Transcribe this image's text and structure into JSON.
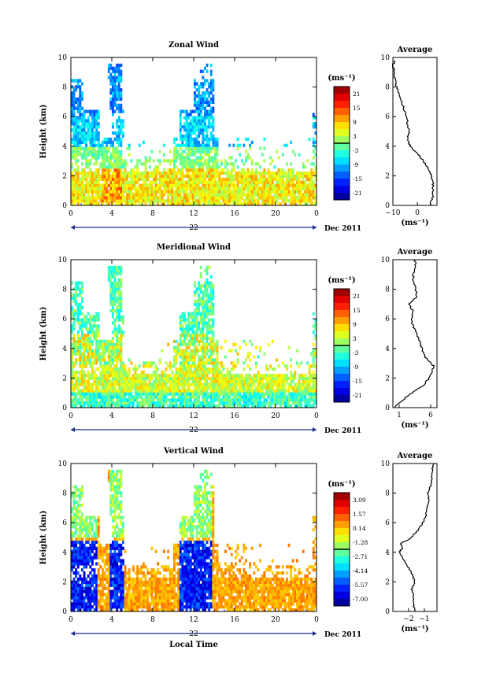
{
  "figure": {
    "date_label": "Dec 2011",
    "day_label": "22",
    "xlabel_bottom": "Local Time",
    "x_ticks": [
      "0",
      "4",
      "8",
      "12",
      "16",
      "20",
      "0"
    ]
  },
  "chart_data": [
    {
      "type": "heatmap",
      "title": "Zonal Wind",
      "ylabel": "Height (km)",
      "xlabel": "",
      "xlim": [
        0,
        24
      ],
      "ylim": [
        0,
        10
      ],
      "y_ticks": [
        "0",
        "2",
        "4",
        "6",
        "8",
        "10"
      ],
      "colorbar": {
        "unit": "(ms⁻¹)",
        "tick_labels": [
          "21",
          "15",
          "9",
          "3",
          "-3",
          "-9",
          "-15",
          "-21"
        ],
        "range": [
          -24,
          24
        ]
      },
      "profile": {
        "title": "Average",
        "xlabel": "(ms⁻¹)",
        "xlim": [
          -10,
          8
        ],
        "x_ticks": [
          "−10",
          "0"
        ],
        "x_tick_values": [
          -10,
          0
        ],
        "y_ticks": [
          "0",
          "2",
          "4",
          "6",
          "8",
          "10"
        ],
        "height_km": [
          0,
          0.5,
          1,
          1.5,
          2,
          2.5,
          3,
          3.5,
          4,
          4.5,
          5,
          5.5,
          6,
          6.5,
          7,
          7.5,
          8,
          8.5,
          9,
          9.5,
          9.8
        ],
        "values": [
          5,
          6.2,
          6.5,
          6.3,
          5.8,
          4.6,
          2.5,
          0,
          -3,
          -4,
          -3.5,
          -4,
          -4.5,
          -5.5,
          -6.5,
          -7.5,
          -8.5,
          -9,
          -9.5,
          -10,
          -9
        ]
      }
    },
    {
      "type": "heatmap",
      "title": "Meridional Wind",
      "ylabel": "Height (km)",
      "xlabel": "",
      "xlim": [
        0,
        24
      ],
      "ylim": [
        0,
        10
      ],
      "y_ticks": [
        "0",
        "2",
        "4",
        "6",
        "8",
        "10"
      ],
      "colorbar": {
        "unit": "(ms⁻¹)",
        "tick_labels": [
          "21",
          "15",
          "9",
          "3",
          "-3",
          "-9",
          "-15",
          "-21"
        ],
        "range": [
          -24,
          24
        ]
      },
      "profile": {
        "title": "Average",
        "xlabel": "(ms⁻¹)",
        "xlim": [
          0,
          7
        ],
        "x_ticks": [
          "1",
          "6"
        ],
        "x_tick_values": [
          1,
          6
        ],
        "y_ticks": [
          "0",
          "2",
          "4",
          "6",
          "8",
          "10"
        ],
        "height_km": [
          0,
          0.5,
          1,
          1.5,
          2,
          2.5,
          2.8,
          3,
          3.5,
          4,
          4.5,
          5,
          5.5,
          6,
          6.5,
          7,
          7.5,
          8,
          8.5,
          9,
          9.5,
          10
        ],
        "values": [
          0.3,
          1.5,
          3,
          4.8,
          5.8,
          6.3,
          6.5,
          6,
          5,
          4.6,
          4.2,
          3.8,
          3.2,
          3,
          3.3,
          2.5,
          3.8,
          3.6,
          3.3,
          3.2,
          3.6,
          3.5
        ]
      }
    },
    {
      "type": "heatmap",
      "title": "Vertical Wind",
      "ylabel": "Height (km)",
      "xlabel": "Local Time",
      "xlim": [
        0,
        24
      ],
      "ylim": [
        0,
        10
      ],
      "y_ticks": [
        "0",
        "2",
        "4",
        "6",
        "8",
        "10"
      ],
      "colorbar": {
        "unit": "(ms⁻¹)",
        "tick_labels": [
          "3.09",
          "1.57",
          "0.14",
          "-1.28",
          "-2.71",
          "-4.14",
          "-5.57",
          "-7.00"
        ],
        "range": [
          -7.7,
          3.8
        ]
      },
      "profile": {
        "title": "Average",
        "xlabel": "(ms⁻¹)",
        "xlim": [
          -3,
          -0.2
        ],
        "x_ticks": [
          "−2",
          "−1"
        ],
        "x_tick_values": [
          -2,
          -1
        ],
        "y_ticks": [
          "0",
          "2",
          "4",
          "6",
          "8",
          "10"
        ],
        "height_km": [
          0,
          0.5,
          1,
          1.5,
          2,
          2.5,
          3,
          3.5,
          4,
          4.3,
          4.6,
          5,
          5.5,
          6,
          6.5,
          7,
          7.5,
          8,
          8.5,
          9,
          9.5,
          10
        ],
        "values": [
          -1.6,
          -1.7,
          -1.7,
          -1.8,
          -1.6,
          -1.8,
          -2.0,
          -2.3,
          -2.6,
          -2.4,
          -2.5,
          -1.8,
          -1.4,
          -1.1,
          -0.9,
          -0.8,
          -0.7,
          -0.8,
          -0.6,
          -0.5,
          -0.5,
          -0.4
        ]
      }
    }
  ]
}
